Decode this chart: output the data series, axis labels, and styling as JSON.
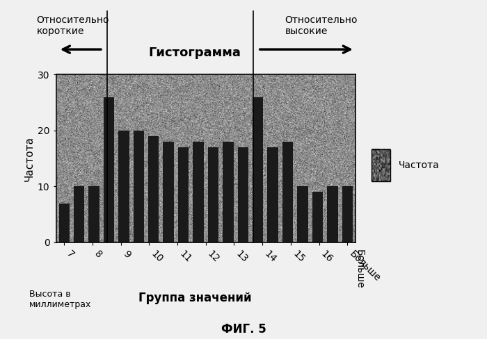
{
  "title": "Гистограмма",
  "xlabel": "Группа значений",
  "ylabel": "Частота",
  "legend_label": "Частота",
  "annotation_left": "Относительно\nкороткие",
  "annotation_right": "Относительно\nвысокие",
  "bottom_note": "ФИГ. 5",
  "categories": [
    "7",
    "8",
    "9",
    "10",
    "11",
    "12",
    "13",
    "14",
    "15",
    "16",
    "Больше"
  ],
  "bar_heights": [
    7,
    10,
    10,
    26,
    20,
    20,
    19,
    18,
    17,
    18,
    17,
    18,
    17,
    26,
    17,
    18,
    10,
    9,
    10,
    10
  ],
  "n_bars": 20,
  "ylim": [
    0,
    30
  ],
  "yticks": [
    0,
    10,
    20,
    30
  ],
  "bar_color": "#1a1a1a",
  "bg_color": "#888888",
  "fig_bg": "#f0f0f0",
  "title_fontsize": 13,
  "label_fontsize": 11,
  "tick_fontsize": 10,
  "left_vline_x": 2.9,
  "right_vline_x": 12.7
}
